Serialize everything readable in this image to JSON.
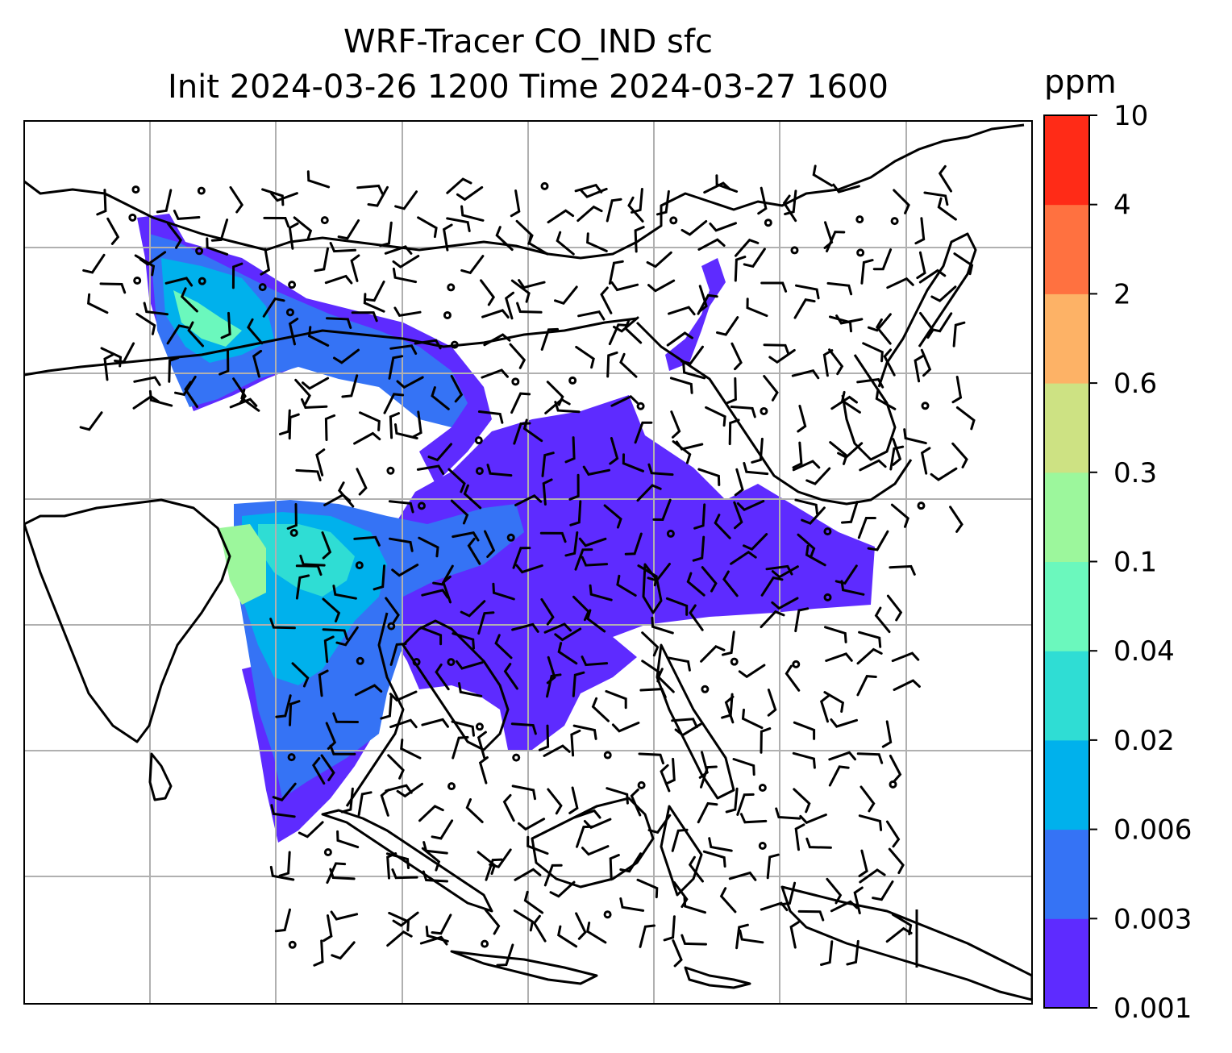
{
  "title": {
    "line1": "WRF-Tracer CO_IND sfc",
    "line2": "Init 2024-03-26 1200 Time 2024-03-27 1600"
  },
  "colorbar": {
    "unit": "ppm",
    "ticks": [
      "0.001",
      "0.003",
      "0.006",
      "0.02",
      "0.04",
      "0.1",
      "0.3",
      "0.6",
      "2",
      "4",
      "10"
    ],
    "colors": [
      "#5e2bff",
      "#3573f5",
      "#00b1ec",
      "#2fddd4",
      "#6bf8bd",
      "#9cf79c",
      "#cde283",
      "#fdb266",
      "#ff7140",
      "#ff2b17"
    ]
  },
  "map": {
    "gridline_color": "#b0b0b0",
    "coastline_color": "#000000",
    "wind_barbs": "black"
  }
}
